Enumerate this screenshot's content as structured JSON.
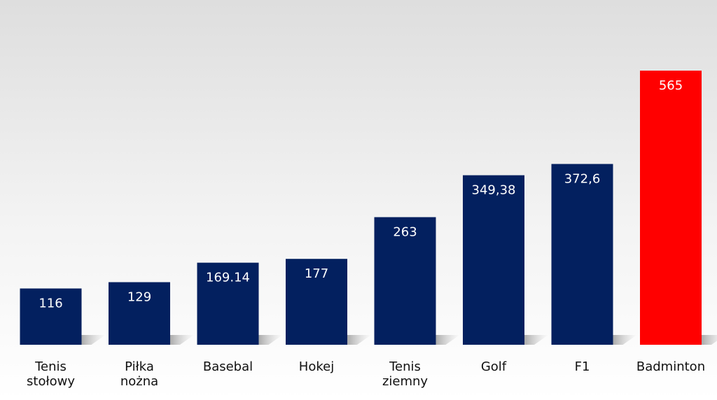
{
  "chart_data": {
    "type": "bar",
    "categories": [
      [
        "Tenis",
        "stołowy"
      ],
      [
        "Piłka",
        "nożna"
      ],
      [
        "Basebal"
      ],
      [
        "Hokej"
      ],
      [
        "Tenis",
        "ziemny"
      ],
      [
        "Golf"
      ],
      [
        "F1"
      ],
      [
        "Badminton"
      ]
    ],
    "values": [
      116,
      129,
      169.14,
      177,
      263,
      349.38,
      372.6,
      565
    ],
    "value_labels": [
      "116",
      "129",
      "169.14",
      "177",
      "263",
      "349,38",
      "372,6",
      "565"
    ],
    "highlight_index": 7,
    "colors": {
      "bar": "#03205f",
      "highlight": "#ff0000",
      "label": "#111111",
      "highlight_label": "#ff0000",
      "value_text": "#ffffff"
    },
    "grid": false,
    "legend": "none"
  }
}
